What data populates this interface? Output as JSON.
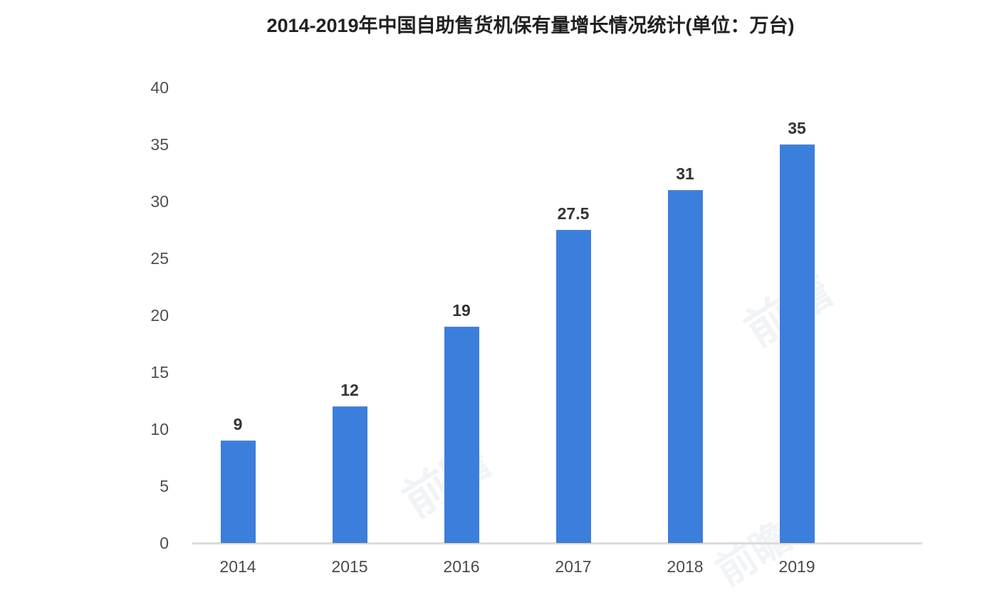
{
  "title": "2014-2019年中国自助售货机保有量增长情况统计(单位：万台)",
  "colors": {
    "bar": "#3c7edb",
    "bar_top_edge": "#5b80b4",
    "baseline": "#dcdcdc",
    "title_text": "#212121",
    "axis_text": "#4f4f4f",
    "value_text": "#333333",
    "watermark": "#c3cede"
  },
  "watermark": {
    "text": "前瞻"
  },
  "chart_data": {
    "type": "bar",
    "title": "2014-2019年中国自助售货机保有量增长情况统计(单位：万台)",
    "categories": [
      "2014",
      "2015",
      "2016",
      "2017",
      "2018",
      "2019"
    ],
    "values": [
      9,
      12,
      19,
      27.5,
      31,
      35
    ],
    "value_labels": [
      "9",
      "12",
      "19",
      "27.5",
      "31",
      "35"
    ],
    "series_name": "自助售货机保有量",
    "unit": "万台",
    "xlabel": "",
    "ylabel": "",
    "ylim": [
      0,
      40
    ],
    "yticks": [
      0,
      5,
      10,
      15,
      20,
      25,
      30,
      35,
      40
    ],
    "grid": false,
    "legend": false
  }
}
